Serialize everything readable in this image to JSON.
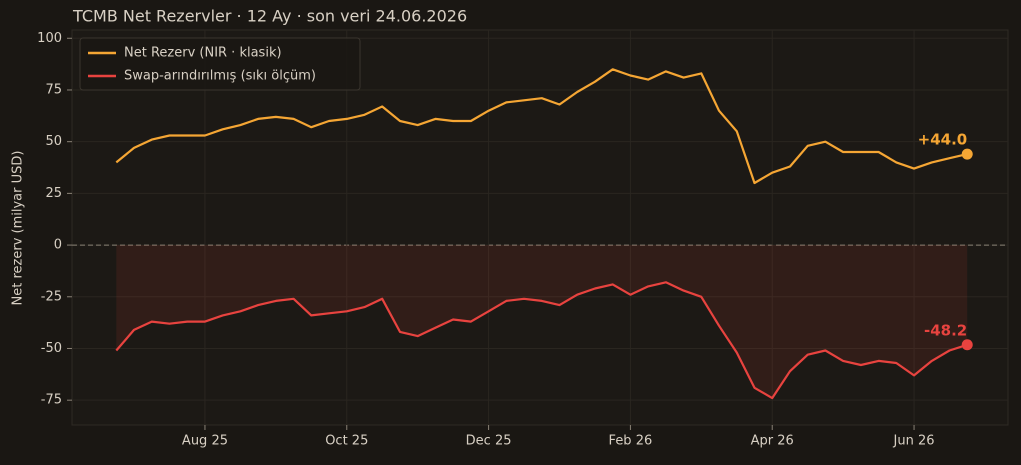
{
  "chart_data": {
    "type": "line",
    "title": "TCMB Net Rezervler · 12 Ay · son veri 24.06.2026",
    "y_label": "Net rezerv (milyar USD)",
    "categories": [
      null,
      null,
      null,
      null,
      null,
      "Aug 25",
      null,
      null,
      null,
      null,
      null,
      null,
      null,
      "Oct 25",
      null,
      null,
      null,
      null,
      null,
      null,
      null,
      "Dec 25",
      null,
      null,
      null,
      null,
      null,
      null,
      null,
      "Feb 26",
      null,
      null,
      null,
      null,
      null,
      null,
      null,
      "Apr 26",
      null,
      null,
      null,
      null,
      null,
      null,
      null,
      "Jun 26",
      null,
      null,
      null
    ],
    "series": [
      {
        "name": "Net Rezerv (NIR · klasik)",
        "color": "#f5a634",
        "end_label": "+44.0",
        "values": [
          40,
          47,
          51,
          53,
          53,
          53,
          56,
          58,
          61,
          62,
          61,
          57,
          60,
          61,
          63,
          67,
          60,
          58,
          61,
          60,
          60,
          65,
          69,
          70,
          71,
          68,
          74,
          79,
          85,
          82,
          80,
          84,
          81,
          83,
          65,
          55,
          30,
          35,
          38,
          48,
          50,
          45,
          45,
          45,
          40,
          37,
          40,
          42,
          44.0
        ]
      },
      {
        "name": "Swap-arındırılmış (sıkı ölçüm)",
        "color": "#e8433f",
        "end_label": "-48.2",
        "fill": true,
        "values": [
          -51,
          -41,
          -37,
          -38,
          -37,
          -37,
          -34,
          -32,
          -29,
          -27,
          -26,
          -34,
          -33,
          -32,
          -30,
          -26,
          -42,
          -44,
          -40,
          -36,
          -37,
          -32,
          -27,
          -26,
          -27,
          -29,
          -24,
          -21,
          -19,
          -24,
          -20,
          -18,
          -22,
          -25,
          -39,
          -52,
          -69,
          -74,
          -61,
          -53,
          -51,
          -56,
          -58,
          -56,
          -57,
          -63,
          -56,
          -51,
          -48.2
        ]
      }
    ],
    "ylim": [
      -87,
      104
    ],
    "yticks": [
      -75,
      -50,
      -25,
      0,
      25,
      50,
      75,
      100
    ],
    "zero_line": true,
    "grid": true,
    "legend": "upper left"
  }
}
